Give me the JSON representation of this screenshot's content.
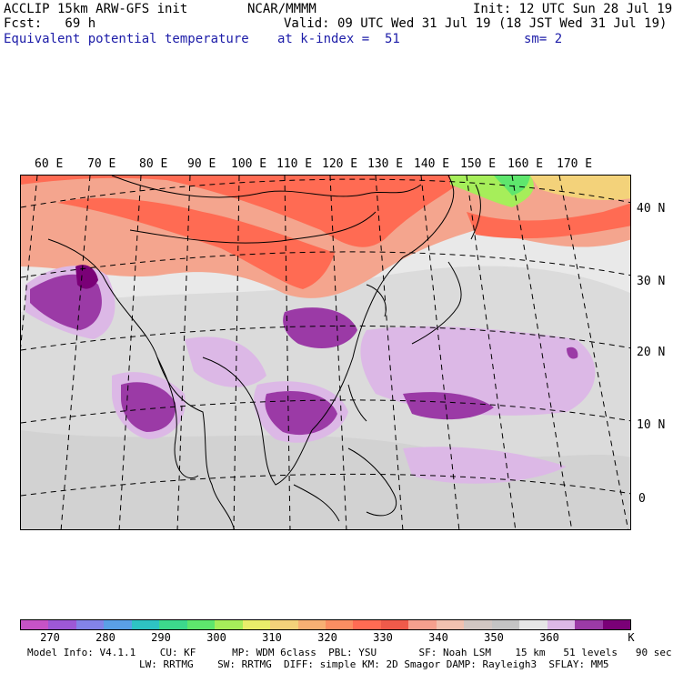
{
  "header": {
    "model": "ACCLIP 15km ARW-GFS init",
    "org": "NCAR/MMMM",
    "init": "Init: 12 UTC Sun 28 Jul 19",
    "fcst": "Fcst:   69 h",
    "valid": "Valid: 09 UTC Wed 31 Jul 19 (18 JST Wed 31 Jul 19)",
    "field": "Equivalent potential temperature",
    "level": "at k-index =  51",
    "smooth": "sm= 2"
  },
  "map": {
    "lon_labels": [
      "60 E",
      "70 E",
      "80 E",
      "90 E",
      "100 E",
      "110 E",
      "120 E",
      "130 E",
      "140 E",
      "150 E",
      "160 E",
      "170 E"
    ],
    "lat_labels": [
      "40 N",
      "30 N",
      "20 N",
      "10 N",
      "0"
    ]
  },
  "colorbar": {
    "colors": [
      "#c653c6",
      "#9d58d6",
      "#8383e8",
      "#5aa0e6",
      "#2ec3c3",
      "#3cd98c",
      "#5ee66d",
      "#a6ee5a",
      "#e9ee6a",
      "#f3d27a",
      "#f7b073",
      "#fb8e62",
      "#ff6b53",
      "#ef5a4a",
      "#f6a08e",
      "#f2c1b0",
      "#d2c6c2",
      "#c4c4c4",
      "#e6e6e6",
      "#dcb8e6",
      "#9b3aa6",
      "#7a0077"
    ],
    "labels": [
      "270",
      "280",
      "290",
      "300",
      "310",
      "320",
      "330",
      "340",
      "350",
      "360",
      "K"
    ]
  },
  "footer": {
    "line1": "Model Info: V4.1.1    CU: KF      MP: WDM 6class  PBL: YSU       SF: Noah LSM    15 km   51 levels   90 sec",
    "line2": "LW: RRTMG    SW: RRTMG  DIFF: simple KM: 2D Smagor DAMP: Rayleigh3  SFLAY: MM5"
  }
}
